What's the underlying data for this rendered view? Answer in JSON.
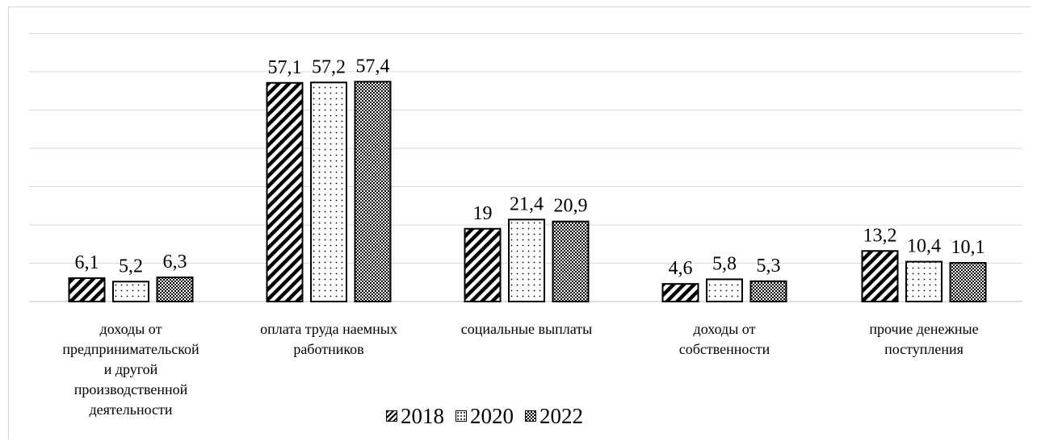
{
  "chart_data": {
    "type": "bar",
    "categories": [
      [
        "доходы от",
        "предпринимательской",
        "и другой",
        "производственной",
        "деятельности"
      ],
      [
        "оплата труда наемных",
        "работников"
      ],
      [
        "социальные выплаты"
      ],
      [
        "доходы от",
        "собственности"
      ],
      [
        "прочие денежные",
        "поступления"
      ]
    ],
    "series": [
      {
        "name": "2018",
        "pattern": "diagonal-stripes",
        "values": [
          6.1,
          57.1,
          19,
          4.6,
          13.2
        ],
        "labels": [
          "6,1",
          "57,1",
          "19",
          "4,6",
          "13,2"
        ]
      },
      {
        "name": "2020",
        "pattern": "dots",
        "values": [
          5.2,
          57.2,
          21.4,
          5.8,
          10.4
        ],
        "labels": [
          "5,2",
          "57,2",
          "21,4",
          "5,8",
          "10,4"
        ]
      },
      {
        "name": "2022",
        "pattern": "checkered",
        "values": [
          6.3,
          57.4,
          20.9,
          5.3,
          10.1
        ],
        "labels": [
          "6,3",
          "57,4",
          "20,9",
          "5,3",
          "10,1"
        ]
      }
    ],
    "ylim": [
      0,
      70
    ],
    "grid": true,
    "legend_position": "bottom",
    "colors": {
      "bar_stroke": "#000000",
      "grid": "#d9d9d9",
      "axis": "#bfbfbf"
    }
  }
}
